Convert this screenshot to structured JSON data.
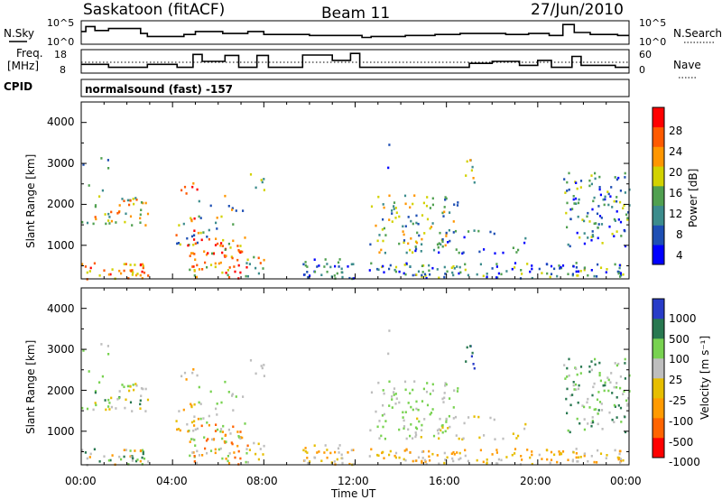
{
  "header": {
    "station": "Saskatoon (fitACF)",
    "beam": "Beam 11",
    "date": "27/Jun/2010"
  },
  "status_panels": {
    "nsky_label": "N.Sky",
    "nsky_ticks": [
      "10^5",
      "10^0"
    ],
    "nsearch_label": "N.Search",
    "nsearch_ticks": [
      "10^5",
      "10^0"
    ],
    "freq_label_line1": "Freq.",
    "freq_label_line2": "[MHz]",
    "freq_ticks": [
      "18",
      "8"
    ],
    "nave_label": "Nave",
    "nave_ticks": [
      "60",
      "0"
    ],
    "cpid_label": "CPID",
    "cpid_text": "normalsound (fast) -157"
  },
  "colors": {
    "power_scale": [
      "#0000ff",
      "#1e4fb4",
      "#3c8c8c",
      "#50a050",
      "#d2d200",
      "#ff9600",
      "#ff5a00",
      "#ff0000"
    ],
    "velocity_scale": [
      "#ff0000",
      "#ff6400",
      "#ff9a00",
      "#e6be00",
      "#bebebe",
      "#78d250",
      "#287850",
      "#283cc8"
    ]
  },
  "chart_data": [
    {
      "type": "heatmap",
      "name": "power",
      "ylabel": "Slant Range [km]",
      "yticks": [
        "4000",
        "3000",
        "2000",
        "1000"
      ],
      "ylim": [
        180,
        4500
      ],
      "xlim": [
        0,
        24
      ],
      "colorbar_label": "Power [dB]",
      "colorbar_ticks": [
        "28",
        "24",
        "20",
        "16",
        "12",
        "8",
        "4"
      ],
      "colorbar_range": [
        0,
        30
      ]
    },
    {
      "type": "heatmap",
      "name": "velocity",
      "ylabel": "Slant Range [km]",
      "yticks": [
        "4000",
        "3000",
        "2000",
        "1000"
      ],
      "ylim": [
        180,
        4500
      ],
      "xlim": [
        0,
        24
      ],
      "colorbar_label": "Velocity [m s⁻¹]",
      "colorbar_ticks": [
        "1000",
        "500",
        "100",
        "25",
        "-25",
        "-100",
        "-500",
        "-1000"
      ]
    }
  ],
  "xaxis": {
    "label": "Time UT",
    "ticks": [
      "00:00",
      "04:00",
      "08:00",
      "12:00",
      "16:00",
      "20:00",
      "00:00"
    ]
  }
}
